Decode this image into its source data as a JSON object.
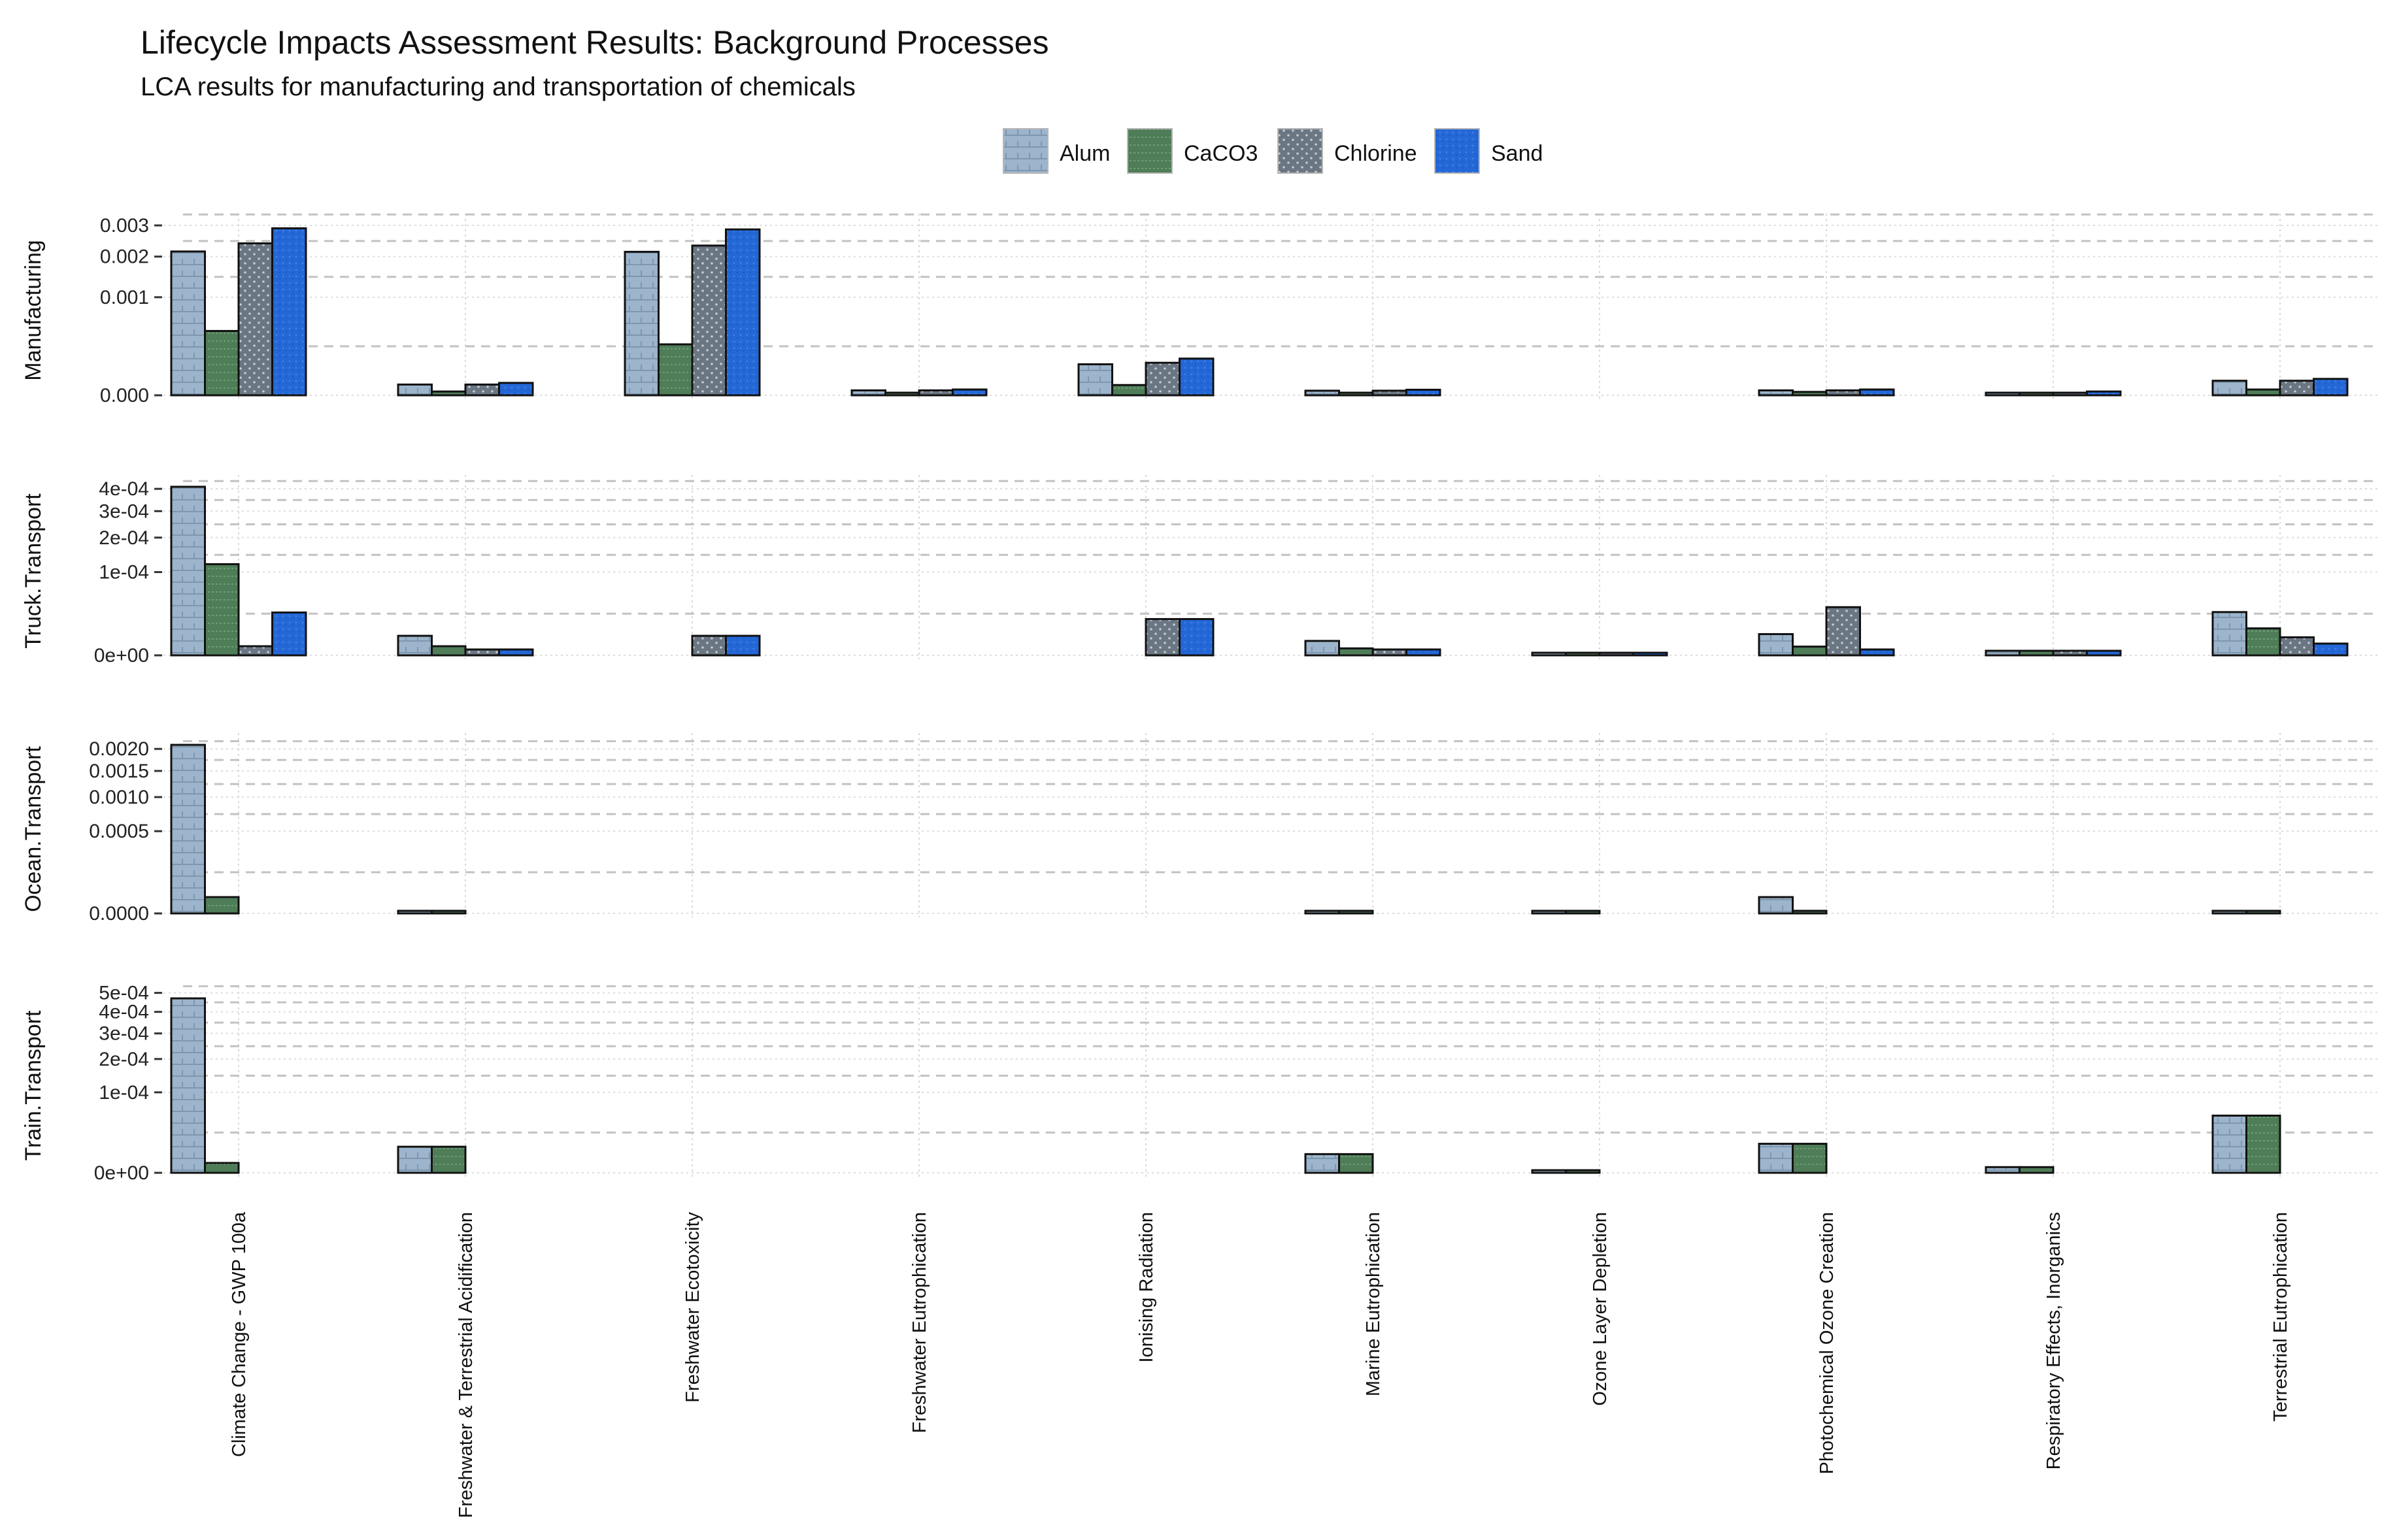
{
  "chart_data": {
    "type": "bar",
    "title": "Lifecycle Impacts Assessment Results: Background Processes",
    "subtitle": "LCA results for manufacturing and transportation of chemicals",
    "series_names": [
      "Alum",
      "CaCO3",
      "Chlorine",
      "Sand"
    ],
    "series_colors": [
      "#9db5cc",
      "#4e7d57",
      "#6b7683",
      "#2468d8"
    ],
    "categories": [
      "Climate Change - GWP 100a",
      "Freshwater & Terrestrial Acidification",
      "Freshwater Ecotoxicity",
      "Freshwater Eutrophication",
      "Ionising Radiation",
      "Marine Eutrophication",
      "Ozone Layer Depletion",
      "Photochemical Ozone Creation",
      "Respiratory Effects, Inorganics",
      "Terrestrial Eutrophication"
    ],
    "scale": "sqrt",
    "panels": [
      {
        "label": "Manufacturing",
        "y_ticks": [
          {
            "value": 0.0,
            "label": "0.000"
          },
          {
            "value": 0.001,
            "label": "0.001"
          },
          {
            "value": 0.002,
            "label": "0.002"
          },
          {
            "value": 0.003,
            "label": "0.003"
          }
        ],
        "ymax": 0.003,
        "series": [
          {
            "name": "Alum",
            "values": [
              0.00215,
              1.2e-05,
              0.00214,
              2.5e-06,
              0.0001,
              2.2e-06,
              0.0,
              2.5e-06,
              5e-07,
              2.2e-05
            ]
          },
          {
            "name": "CaCO3",
            "values": [
              0.00043,
              1.5e-06,
              0.00027,
              5e-07,
              1.1e-05,
              4e-07,
              0.0,
              1.2e-06,
              3e-07,
              3.5e-06
            ]
          },
          {
            "name": "Chlorine",
            "values": [
              0.0024,
              1.2e-05,
              0.00233,
              2.5e-06,
              0.00011,
              2.2e-06,
              0.0,
              2.5e-06,
              5e-07,
              2.2e-05
            ]
          },
          {
            "name": "Sand",
            "values": [
              0.0029,
              1.6e-05,
              0.00286,
              3.5e-06,
              0.00014,
              3.2e-06,
              0.0,
              3.5e-06,
              1.5e-06,
              2.8e-05
            ]
          }
        ]
      },
      {
        "label": "Truck.Transport",
        "y_ticks": [
          {
            "value": 0.0,
            "label": "0e+00"
          },
          {
            "value": 0.0001,
            "label": "1e-04"
          },
          {
            "value": 0.0002,
            "label": "2e-04"
          },
          {
            "value": 0.0003,
            "label": "3e-04"
          },
          {
            "value": 0.0004,
            "label": "4e-04"
          }
        ],
        "ymax": 0.00041,
        "series": [
          {
            "name": "Alum",
            "values": [
              0.00041,
              5.5e-06,
              0.0,
              0.0,
              0.0,
              3e-06,
              3e-08,
              6.5e-06,
              3e-07,
              2.7e-05
            ]
          },
          {
            "name": "CaCO3",
            "values": [
              0.00012,
              1.2e-06,
              0.0,
              0.0,
              0.0,
              7e-07,
              3e-08,
              1.1e-06,
              3e-07,
              1.05e-05
            ]
          },
          {
            "name": "Chlorine",
            "values": [
              1.2e-06,
              5e-07,
              5.5e-06,
              0.0,
              1.9e-05,
              5e-07,
              3e-08,
              3.35e-05,
              3e-07,
              4.7e-06
            ]
          },
          {
            "name": "Sand",
            "values": [
              2.65e-05,
              5e-07,
              5.5e-06,
              0.0,
              1.9e-05,
              5e-07,
              3e-08,
              5e-07,
              3e-07,
              2e-06
            ]
          }
        ]
      },
      {
        "label": "Ocean.Transport",
        "y_ticks": [
          {
            "value": 0.0,
            "label": "0.0000"
          },
          {
            "value": 0.0005,
            "label": "0.0005"
          },
          {
            "value": 0.001,
            "label": "0.0010"
          },
          {
            "value": 0.0015,
            "label": "0.0015"
          },
          {
            "value": 0.002,
            "label": "0.0020"
          }
        ],
        "ymax": 0.0021,
        "series": [
          {
            "name": "Alum",
            "values": [
              0.0021,
              1e-07,
              0.0,
              0.0,
              0.0,
              1e-07,
              1e-07,
              1.97e-05,
              0.0,
              1e-07
            ]
          },
          {
            "name": "CaCO3",
            "values": [
              1.97e-05,
              1e-07,
              0.0,
              0.0,
              0.0,
              1e-07,
              1e-07,
              1e-07,
              0.0,
              1e-07
            ]
          }
        ]
      },
      {
        "label": "Train.Transport",
        "y_ticks": [
          {
            "value": 0.0,
            "label": "0e+00"
          },
          {
            "value": 0.0001,
            "label": "1e-04"
          },
          {
            "value": 0.0002,
            "label": "2e-04"
          },
          {
            "value": 0.0003,
            "label": "3e-04"
          },
          {
            "value": 0.0004,
            "label": "4e-04"
          },
          {
            "value": 0.0005,
            "label": "5e-04"
          }
        ],
        "ymax": 0.00047,
        "series": [
          {
            "name": "Alum",
            "values": [
              0.00047,
              1.05e-05,
              0.0,
              0.0,
              0.0,
              5.4e-06,
              1e-07,
              1.3e-05,
              5e-07,
              5.05e-05
            ]
          },
          {
            "name": "CaCO3",
            "values": [
              1.5e-06,
              1.05e-05,
              0.0,
              0.0,
              0.0,
              5.4e-06,
              1e-07,
              1.3e-05,
              5e-07,
              5.05e-05
            ]
          }
        ]
      }
    ]
  }
}
